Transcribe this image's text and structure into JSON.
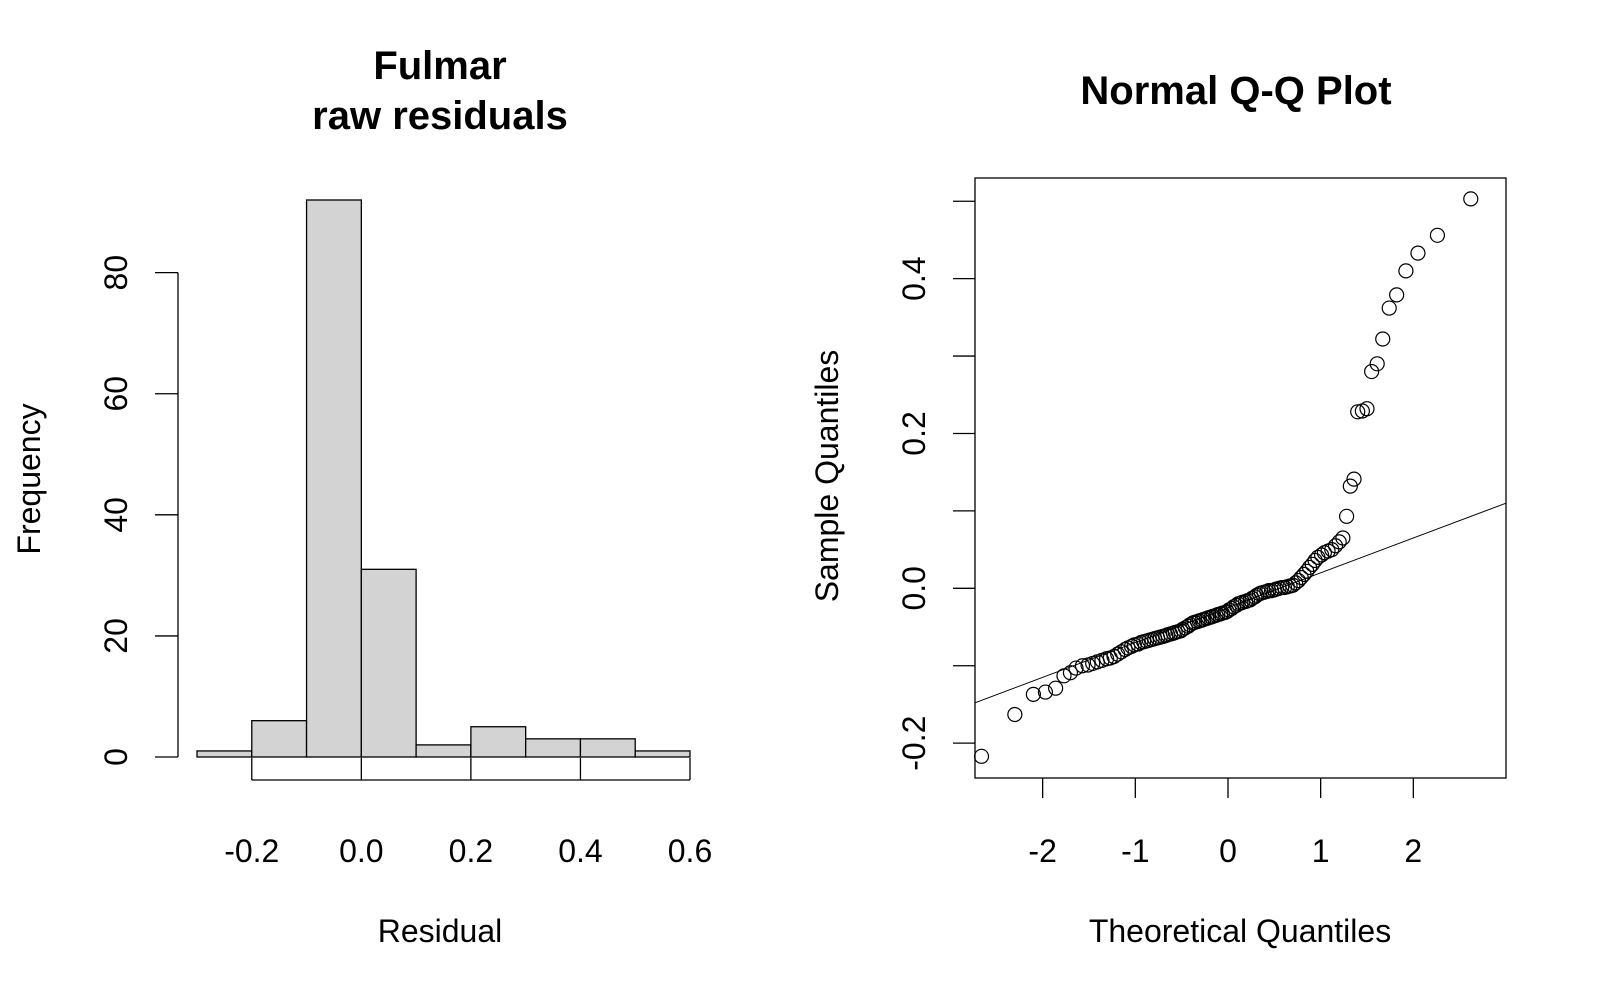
{
  "chart_data": [
    {
      "type": "bar",
      "subtype": "histogram",
      "title_lines": [
        "Fulmar",
        "raw residuals"
      ],
      "xlabel": "Residual",
      "ylabel": "Frequency",
      "bin_edges": [
        -0.3,
        -0.2,
        -0.1,
        0.0,
        0.1,
        0.2,
        0.3,
        0.4,
        0.5,
        0.6
      ],
      "values": [
        1,
        6,
        92,
        31,
        2,
        5,
        3,
        3,
        1
      ],
      "xlim": [
        -0.3,
        0.6
      ],
      "ylim": [
        0,
        92
      ],
      "x_ticks": [
        -0.2,
        0.0,
        0.2,
        0.4,
        0.6
      ],
      "x_tick_labels": [
        "-0.2",
        "0.0",
        "0.2",
        "0.4",
        "0.6"
      ],
      "y_ticks": [
        0,
        20,
        40,
        60,
        80
      ],
      "y_tick_labels": [
        "0",
        "20",
        "40",
        "60",
        "80"
      ],
      "bar_color": "#d3d3d3",
      "grid": false
    },
    {
      "type": "scatter",
      "subtype": "qq-plot",
      "title": "Normal Q-Q Plot",
      "xlabel": "Theoretical Quantiles",
      "ylabel": "Sample Quantiles",
      "xlim": [
        -2.73,
        3.0
      ],
      "ylim": [
        -0.245,
        0.53
      ],
      "x_ticks": [
        -2,
        -1,
        0,
        1,
        2
      ],
      "x_tick_labels": [
        "-2",
        "-1",
        "0",
        "1",
        "2"
      ],
      "y_ticks": [
        -0.2,
        -0.1,
        0.0,
        0.1,
        0.2,
        0.3,
        0.4,
        0.5
      ],
      "y_tick_labels": [
        "-0.2",
        "",
        "0.0",
        "",
        "0.2",
        "",
        "0.4",
        ""
      ],
      "reference_line": {
        "intercept": -0.025,
        "slope": 0.045
      },
      "points": [
        [
          -2.66,
          -0.217
        ],
        [
          -2.3,
          -0.163
        ],
        [
          -2.1,
          -0.137
        ],
        [
          -1.97,
          -0.134
        ],
        [
          -1.86,
          -0.129
        ],
        [
          -1.77,
          -0.113
        ],
        [
          -1.7,
          -0.109
        ],
        [
          -1.64,
          -0.103
        ],
        [
          -1.57,
          -0.1
        ],
        [
          -1.51,
          -0.099
        ],
        [
          -1.46,
          -0.097
        ],
        [
          -1.41,
          -0.095
        ],
        [
          -1.36,
          -0.093
        ],
        [
          -1.31,
          -0.091
        ],
        [
          -1.27,
          -0.09
        ],
        [
          -1.23,
          -0.088
        ],
        [
          -1.19,
          -0.085
        ],
        [
          -1.15,
          -0.082
        ],
        [
          -1.11,
          -0.079
        ],
        [
          -1.08,
          -0.077
        ],
        [
          -1.04,
          -0.075
        ],
        [
          -1.01,
          -0.073
        ],
        [
          -0.97,
          -0.072
        ],
        [
          -0.94,
          -0.07
        ],
        [
          -0.91,
          -0.069
        ],
        [
          -0.88,
          -0.068
        ],
        [
          -0.85,
          -0.067
        ],
        [
          -0.82,
          -0.066
        ],
        [
          -0.79,
          -0.065
        ],
        [
          -0.76,
          -0.064
        ],
        [
          -0.73,
          -0.063
        ],
        [
          -0.7,
          -0.062
        ],
        [
          -0.67,
          -0.061
        ],
        [
          -0.65,
          -0.06
        ],
        [
          -0.62,
          -0.059
        ],
        [
          -0.59,
          -0.058
        ],
        [
          -0.57,
          -0.057
        ],
        [
          -0.54,
          -0.056
        ],
        [
          -0.51,
          -0.055
        ],
        [
          -0.49,
          -0.053
        ],
        [
          -0.46,
          -0.051
        ],
        [
          -0.43,
          -0.049
        ],
        [
          -0.41,
          -0.047
        ],
        [
          -0.38,
          -0.045
        ],
        [
          -0.36,
          -0.044
        ],
        [
          -0.33,
          -0.043
        ],
        [
          -0.31,
          -0.042
        ],
        [
          -0.28,
          -0.041
        ],
        [
          -0.26,
          -0.04
        ],
        [
          -0.23,
          -0.039
        ],
        [
          -0.21,
          -0.038
        ],
        [
          -0.18,
          -0.037
        ],
        [
          -0.16,
          -0.036
        ],
        [
          -0.13,
          -0.035
        ],
        [
          -0.11,
          -0.034
        ],
        [
          -0.08,
          -0.033
        ],
        [
          -0.06,
          -0.032
        ],
        [
          -0.03,
          -0.031
        ],
        [
          -0.01,
          -0.03
        ],
        [
          0.01,
          -0.028
        ],
        [
          0.04,
          -0.026
        ],
        [
          0.06,
          -0.024
        ],
        [
          0.09,
          -0.022
        ],
        [
          0.11,
          -0.02
        ],
        [
          0.14,
          -0.019
        ],
        [
          0.16,
          -0.018
        ],
        [
          0.19,
          -0.017
        ],
        [
          0.21,
          -0.016
        ],
        [
          0.24,
          -0.015
        ],
        [
          0.26,
          -0.013
        ],
        [
          0.29,
          -0.011
        ],
        [
          0.31,
          -0.009
        ],
        [
          0.34,
          -0.007
        ],
        [
          0.36,
          -0.006
        ],
        [
          0.39,
          -0.005
        ],
        [
          0.42,
          -0.004
        ],
        [
          0.44,
          -0.003
        ],
        [
          0.47,
          -0.003
        ],
        [
          0.5,
          -0.002
        ],
        [
          0.52,
          -0.001
        ],
        [
          0.55,
          0.0
        ],
        [
          0.58,
          0.001
        ],
        [
          0.61,
          0.001
        ],
        [
          0.64,
          0.002
        ],
        [
          0.67,
          0.003
        ],
        [
          0.7,
          0.004
        ],
        [
          0.73,
          0.007
        ],
        [
          0.76,
          0.01
        ],
        [
          0.79,
          0.014
        ],
        [
          0.82,
          0.018
        ],
        [
          0.85,
          0.022
        ],
        [
          0.88,
          0.027
        ],
        [
          0.91,
          0.031
        ],
        [
          0.94,
          0.036
        ],
        [
          0.97,
          0.04
        ],
        [
          1.01,
          0.043
        ],
        [
          1.04,
          0.046
        ],
        [
          1.08,
          0.048
        ],
        [
          1.12,
          0.05
        ],
        [
          1.16,
          0.055
        ],
        [
          1.2,
          0.06
        ],
        [
          1.24,
          0.065
        ],
        [
          1.28,
          0.093
        ],
        [
          1.32,
          0.132
        ],
        [
          1.36,
          0.141
        ],
        [
          1.4,
          0.228
        ],
        [
          1.45,
          0.229
        ],
        [
          1.5,
          0.232
        ],
        [
          1.55,
          0.28
        ],
        [
          1.61,
          0.29
        ],
        [
          1.67,
          0.322
        ],
        [
          1.74,
          0.362
        ],
        [
          1.82,
          0.379
        ],
        [
          1.92,
          0.41
        ],
        [
          2.05,
          0.433
        ],
        [
          2.26,
          0.456
        ],
        [
          2.62,
          0.503
        ]
      ],
      "marker": "open-circle",
      "grid": false
    }
  ]
}
